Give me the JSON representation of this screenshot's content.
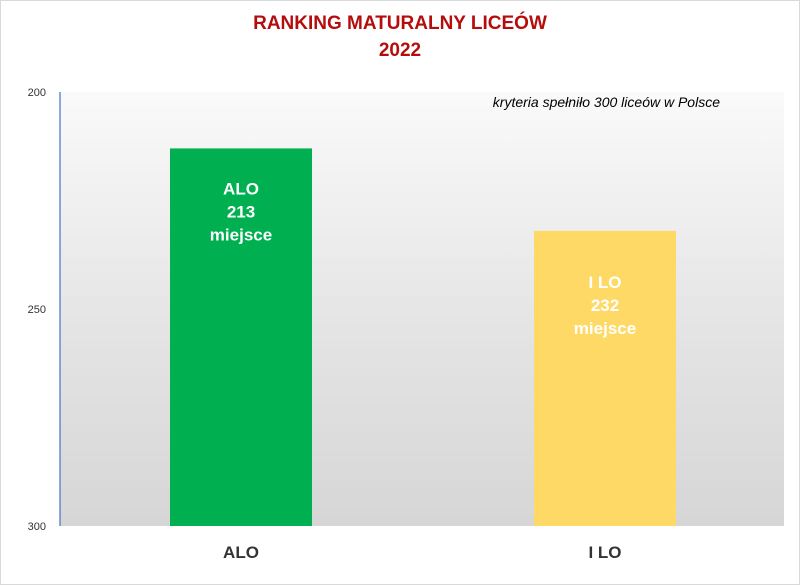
{
  "title": "RANKING MATURALNY LICEÓW",
  "subtitle": "2022",
  "chart_data": {
    "type": "bar",
    "title": "RANKING MATURALNY LICEÓW",
    "subtitle": "2022",
    "categories": [
      "ALO",
      "I LO"
    ],
    "values": [
      213,
      232
    ],
    "bar_labels": [
      [
        "ALO",
        "213",
        "miejsce"
      ],
      [
        "I LO",
        "232",
        "miejsce"
      ]
    ],
    "colors": [
      "#00b050",
      "#ffd966"
    ],
    "ylim": [
      200,
      300
    ],
    "y_inverted": true,
    "y_ticks": [
      "200",
      "250",
      "300"
    ],
    "annotation": "kryteria spełniło 300 liceów w Polsce",
    "grid": false
  }
}
